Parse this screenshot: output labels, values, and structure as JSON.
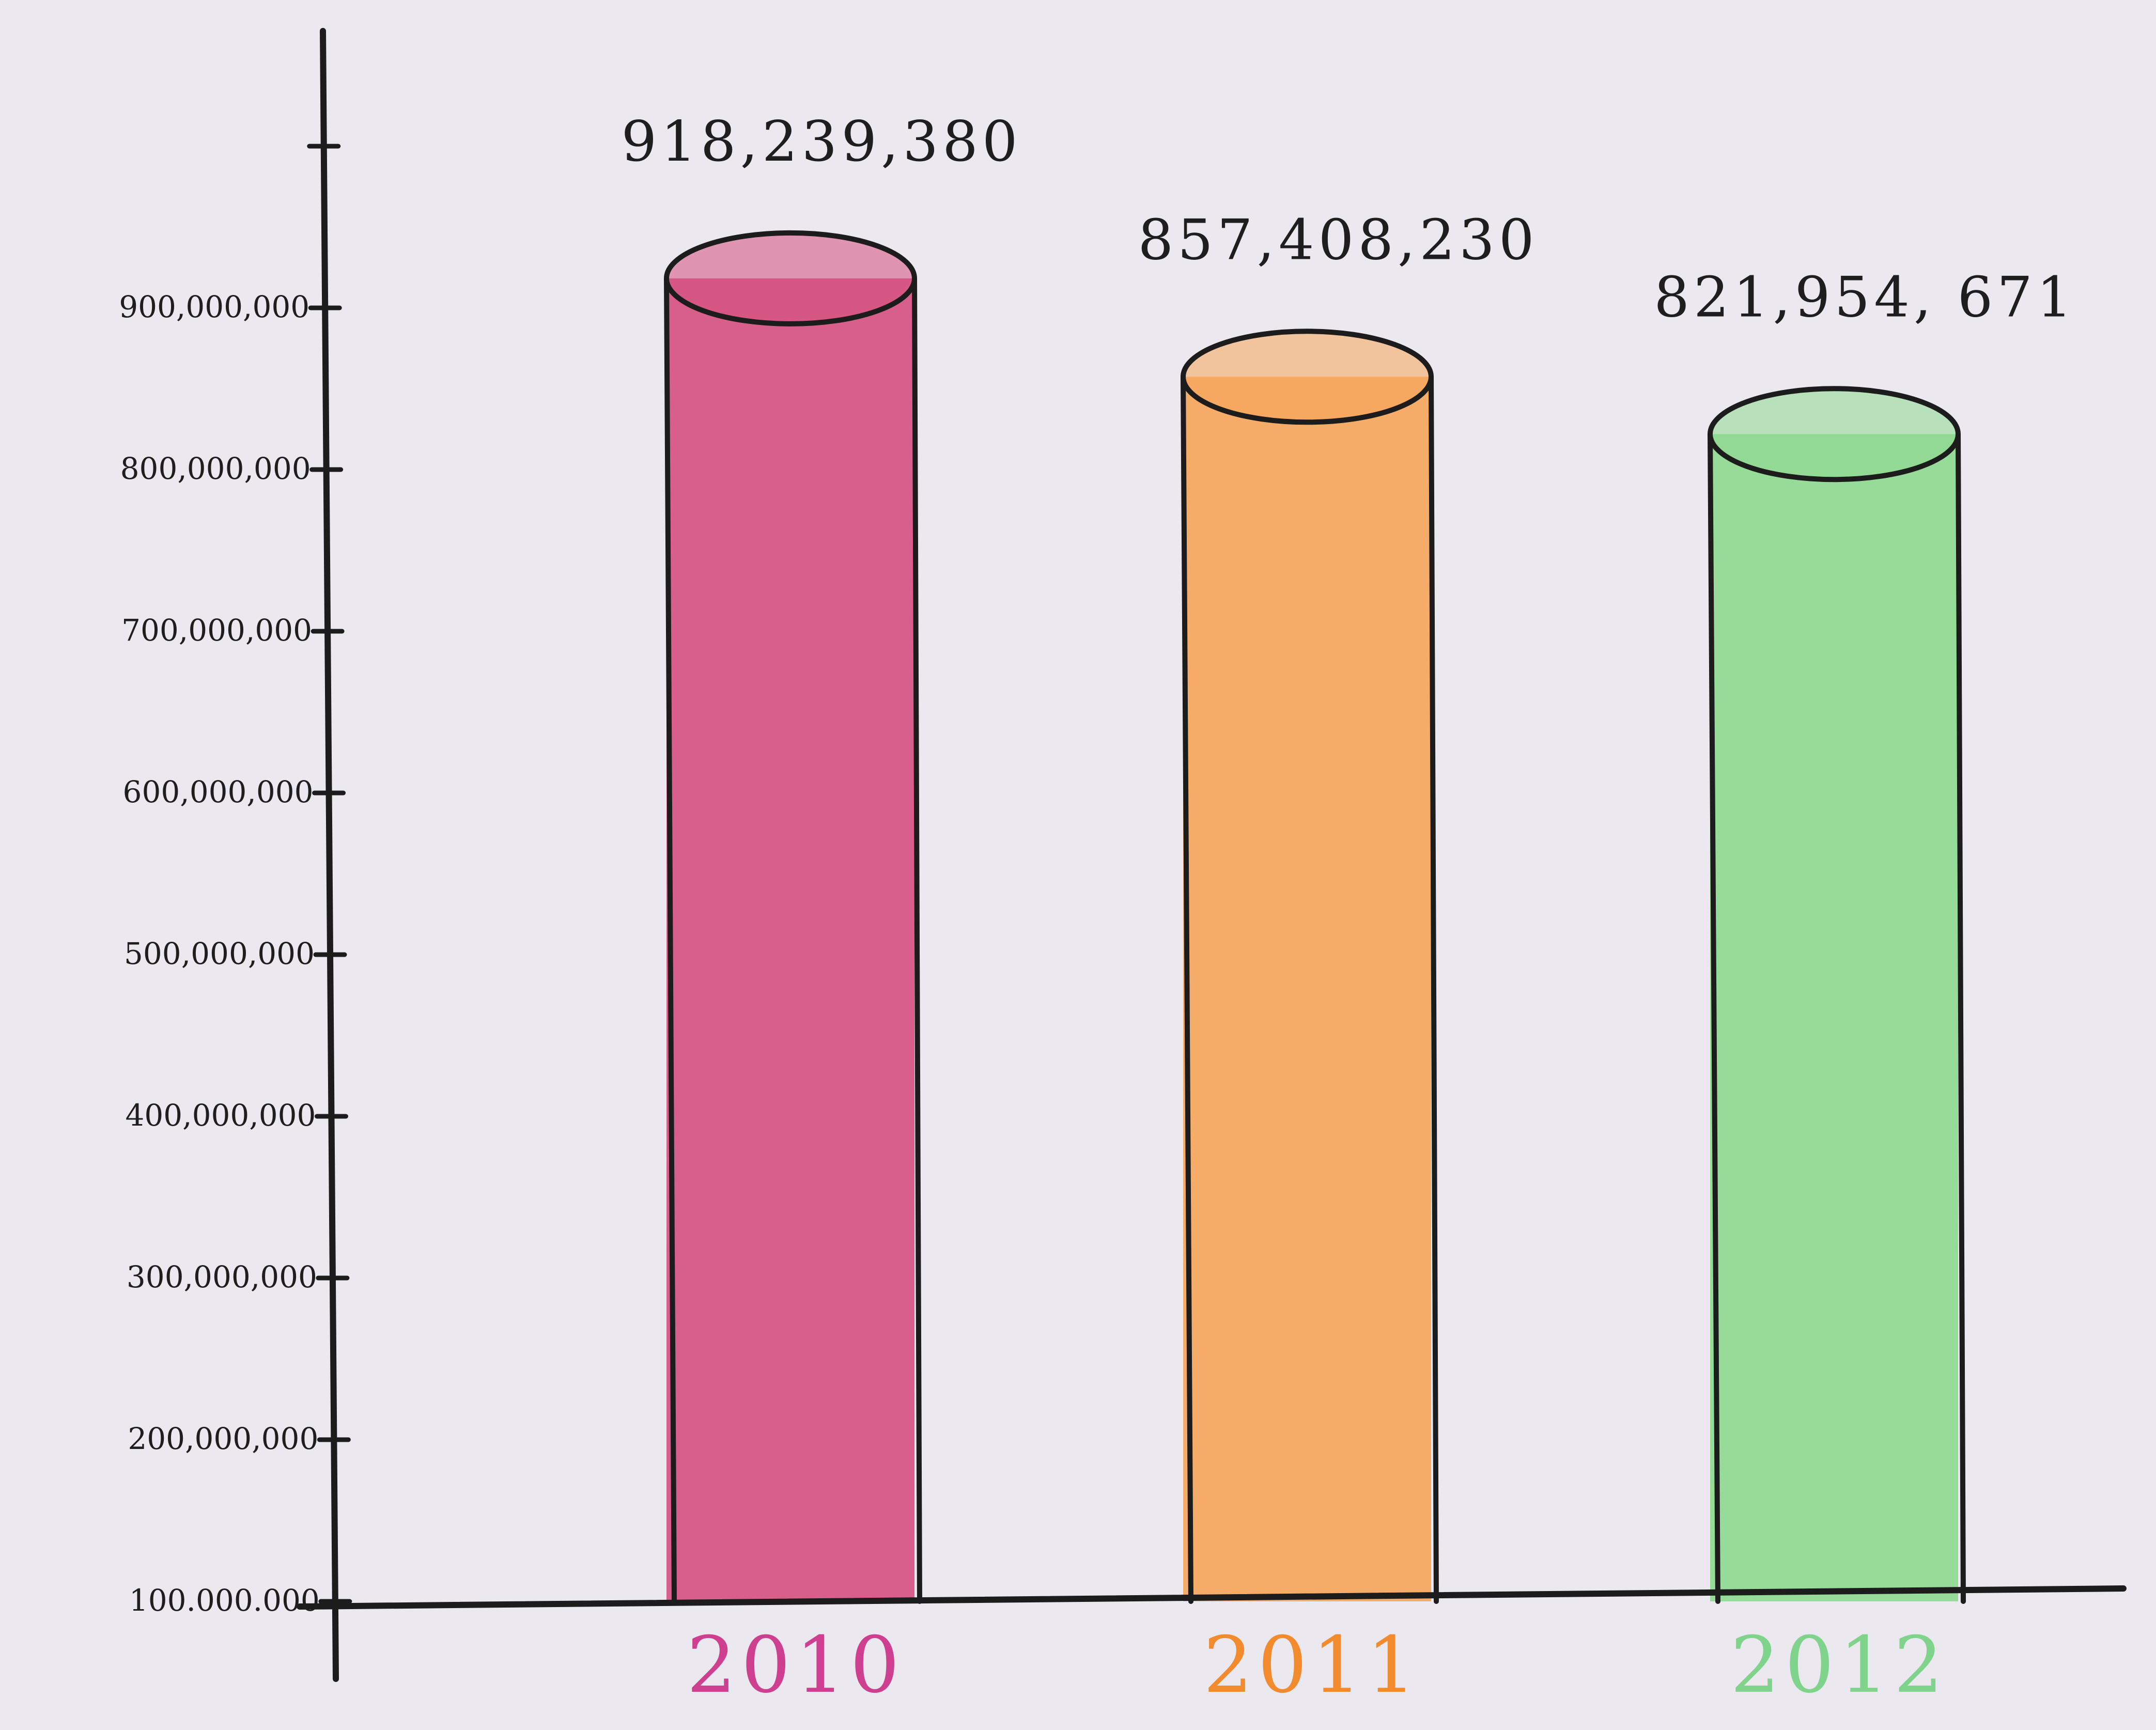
{
  "chart_data": {
    "type": "bar",
    "title": "",
    "xlabel": "",
    "ylabel": "",
    "categories": [
      "2010",
      "2011",
      "2012"
    ],
    "values": [
      918239380,
      857408230,
      821954671
    ],
    "value_labels": [
      "918,239,380",
      "857,408,230",
      "821,954, 671"
    ],
    "ylim": [
      100000000,
      1000000000
    ],
    "y_ticks": [
      100000000,
      200000000,
      300000000,
      400000000,
      500000000,
      600000000,
      700000000,
      800000000,
      900000000
    ],
    "y_tick_labels": [
      "100.000.000",
      "200,000,000",
      "300,000,000",
      "400,000,000",
      "500,000,000",
      "600,000,000",
      "700,000,000",
      "800,000,000",
      "900,000,000"
    ],
    "colors": [
      "#d6507f",
      "#f7a55a",
      "#8ed98f"
    ],
    "label_colors": [
      "#cf3f8f",
      "#f28a2e",
      "#7fd38a"
    ],
    "grid": false,
    "legend": "none",
    "style": "hand-drawn cylinders"
  }
}
